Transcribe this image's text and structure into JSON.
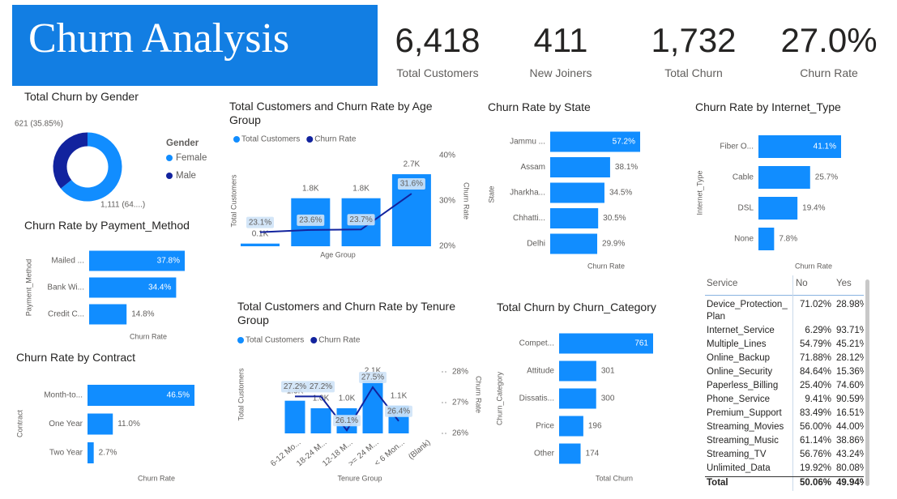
{
  "header": {
    "title": "Churn Analysis"
  },
  "kpis": [
    {
      "value": "6,418",
      "label": "Total Customers"
    },
    {
      "value": "411",
      "label": "New Joiners"
    },
    {
      "value": "1,732",
      "label": "Total Churn"
    },
    {
      "value": "27.0%",
      "label": "Churn Rate"
    }
  ],
  "chart_data": [
    {
      "type": "donut",
      "title": "Total Churn by Gender",
      "legend_title": "Gender",
      "categories": [
        "Female",
        "Male"
      ],
      "values": [
        1111,
        621
      ],
      "value_labels": [
        "1,111 (64....)",
        "621 (35.85%)"
      ],
      "colors": [
        "#118dff",
        "#12239e"
      ]
    },
    {
      "type": "combo",
      "title": "Total Customers and Churn Rate by Age Group",
      "categories": [
        null,
        null,
        null,
        null
      ],
      "series": [
        {
          "name": "Total Customers",
          "color": "#118dff",
          "values": [
            100,
            1800,
            1800,
            2700
          ],
          "value_labels": [
            "0.1K",
            "1.8K",
            "1.8K",
            "2.7K"
          ]
        },
        {
          "name": "Churn Rate",
          "color": "#12239e",
          "axis": "y2",
          "values": [
            23.1,
            23.6,
            23.7,
            31.6
          ],
          "value_labels": [
            "23.1%",
            "23.6%",
            "23.7%",
            "31.6%"
          ]
        }
      ],
      "ylim": [
        0,
        3400
      ],
      "y2lim": [
        20,
        40
      ],
      "y2ticks": [
        {
          "value": 20,
          "label": "20%"
        },
        {
          "value": 30,
          "label": "30%"
        },
        {
          "value": 40,
          "label": "40%"
        }
      ],
      "x_label": "Age Group",
      "y_label": "Total Customers",
      "y2_label": "Churn Rate",
      "legend": true
    },
    {
      "type": "hbar",
      "title": "Churn Rate by State",
      "categories": [
        "Jammu ...",
        "Assam",
        "Jharkha...",
        "Chhatti...",
        "Delhi"
      ],
      "values": [
        57.2,
        38.1,
        34.5,
        30.5,
        29.9
      ],
      "value_labels": [
        "57.2%",
        "38.1%",
        "34.5%",
        "30.5%",
        "29.9%"
      ],
      "xlim": [
        0,
        57.2
      ],
      "color": "#118dff",
      "x_label": "Churn Rate",
      "y_label": "State"
    },
    {
      "type": "hbar",
      "title": "Churn Rate by Internet_Type",
      "categories": [
        "Fiber O...",
        "Cable",
        "DSL",
        "None"
      ],
      "values": [
        41.1,
        25.7,
        19.4,
        7.8
      ],
      "value_labels": [
        "41.1%",
        "25.7%",
        "19.4%",
        "7.8%"
      ],
      "xlim": [
        0,
        41.1
      ],
      "color": "#118dff",
      "x_label": "Churn Rate",
      "y_label": "Internet_Type"
    },
    {
      "type": "hbar",
      "title": "Churn Rate by Payment_Method",
      "categories": [
        "Mailed ...",
        "Bank Wi...",
        "Credit C..."
      ],
      "values": [
        37.8,
        34.4,
        14.8
      ],
      "value_labels": [
        "37.8%",
        "34.4%",
        "14.8%"
      ],
      "xlim": [
        0,
        37.8
      ],
      "color": "#118dff",
      "x_label": "Churn Rate",
      "y_label": "Payment_Method"
    },
    {
      "type": "hbar",
      "title": "Churn Rate by Contract",
      "categories": [
        "Month-to...",
        "One Year",
        "Two Year"
      ],
      "values": [
        46.5,
        11.0,
        2.7
      ],
      "value_labels": [
        "46.5%",
        "11.0%",
        "2.7%"
      ],
      "xlim": [
        0,
        46.5
      ],
      "color": "#118dff",
      "x_label": "Churn Rate",
      "y_label": "Contract"
    },
    {
      "type": "combo",
      "title": "Total Customers and Churn Rate by Tenure Group",
      "categories": [
        "6-12 Mo...",
        "18-24 M...",
        "12-18 M...",
        ">= 24 M...",
        "< 6 Mon...",
        "(Blank)"
      ],
      "series": [
        {
          "name": "Total Customers",
          "color": "#118dff",
          "values": [
            1300,
            1000,
            1000,
            2100,
            1100,
            null
          ],
          "value_labels": [
            "1.3K",
            "1.0K",
            "1.0K",
            "2.1K",
            "1.1K",
            null
          ]
        },
        {
          "name": "Churn Rate",
          "color": "#12239e",
          "axis": "y2",
          "values": [
            27.2,
            27.2,
            26.1,
            27.5,
            26.4,
            null
          ],
          "value_labels": [
            "27.2%",
            "27.2%",
            "26.1%",
            "27.5%",
            "26.4%",
            null
          ]
        }
      ],
      "ylim": [
        0,
        2450
      ],
      "y2lim": [
        26,
        28
      ],
      "y2ticks": [
        {
          "value": 26,
          "label": "26%"
        },
        {
          "value": 27,
          "label": "27%"
        },
        {
          "value": 28,
          "label": "28%"
        }
      ],
      "x_label": "Tenure Group",
      "y_label": "Total Customers",
      "y2_label": "Churn Rate",
      "legend": true
    },
    {
      "type": "hbar",
      "title": "Total Churn by Churn_Category",
      "categories": [
        "Compet...",
        "Attitude",
        "Dissatis...",
        "Price",
        "Other"
      ],
      "values": [
        761,
        301,
        300,
        196,
        174
      ],
      "xlim": [
        0,
        761
      ],
      "color": "#118dff",
      "x_label": "Total Churn",
      "y_label": "Churn_Category"
    }
  ],
  "table": {
    "header": [
      "Service",
      "No",
      "Yes"
    ],
    "rows": [
      [
        "Device_Protection_Plan",
        "71.02%",
        "28.98%"
      ],
      [
        "Internet_Service",
        "6.29%",
        "93.71%"
      ],
      [
        "Multiple_Lines",
        "54.79%",
        "45.21%"
      ],
      [
        "Online_Backup",
        "71.88%",
        "28.12%"
      ],
      [
        "Online_Security",
        "84.64%",
        "15.36%"
      ],
      [
        "Paperless_Billing",
        "25.40%",
        "74.60%"
      ],
      [
        "Phone_Service",
        "9.41%",
        "90.59%"
      ],
      [
        "Premium_Support",
        "83.49%",
        "16.51%"
      ],
      [
        "Streaming_Movies",
        "56.00%",
        "44.00%"
      ],
      [
        "Streaming_Music",
        "61.14%",
        "38.86%"
      ],
      [
        "Streaming_TV",
        "56.76%",
        "43.24%"
      ],
      [
        "Unlimited_Data",
        "19.92%",
        "80.08%"
      ]
    ],
    "total": [
      "Total",
      "50.06%",
      "49.94%"
    ]
  }
}
